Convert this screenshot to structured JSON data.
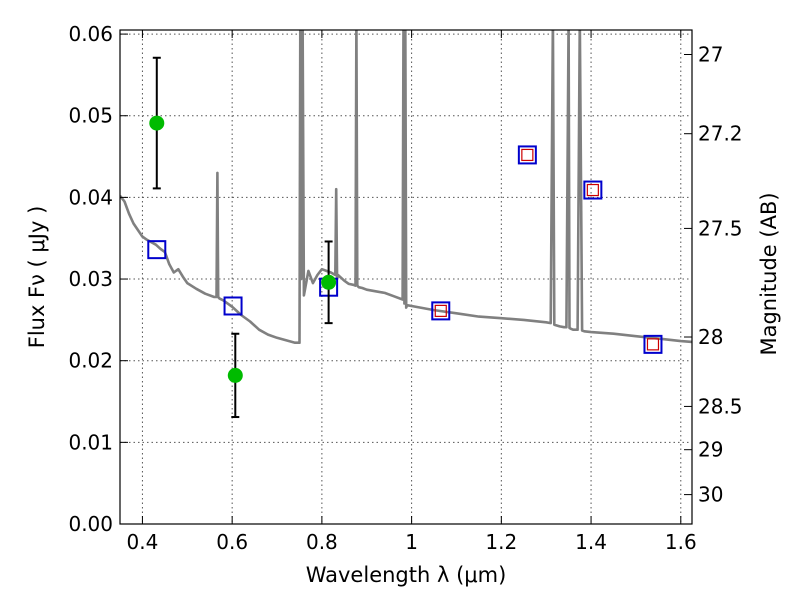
{
  "chart_data": {
    "type": "scatter",
    "xlabel": "Wavelength  λ (μm)",
    "ylabel_left": "Flux  Fν  ( μJy )",
    "ylabel_right": "Magnitude (AB)",
    "xlim": [
      0.35,
      1.625
    ],
    "ylim": [
      0.0,
      0.0605
    ],
    "grid": true,
    "x_ticks": [
      0.4,
      0.6,
      0.8,
      1.0,
      1.2,
      1.4,
      1.6
    ],
    "x_tick_labels": [
      "0.4",
      "0.6",
      "0.8",
      "1",
      "1.2",
      "1.4",
      "1.6"
    ],
    "y_ticks": [
      0.0,
      0.01,
      0.02,
      0.03,
      0.04,
      0.05,
      0.06
    ],
    "y_tick_labels": [
      "0.00",
      "0.01",
      "0.02",
      "0.03",
      "0.04",
      "0.05",
      "0.06"
    ],
    "right_ticks": [
      {
        "label": "27",
        "flux": 0.0575
      },
      {
        "label": "27.2",
        "flux": 0.0478
      },
      {
        "label": "27.5",
        "flux": 0.0362
      },
      {
        "label": "28",
        "flux": 0.0229
      },
      {
        "label": "28.5",
        "flux": 0.0144
      },
      {
        "label": "29",
        "flux": 0.0091
      },
      {
        "label": "30",
        "flux": 0.0036
      }
    ],
    "series": [
      {
        "kind": "line",
        "color": "#808080",
        "x": [
          0.35,
          0.36,
          0.37,
          0.38,
          0.39,
          0.4,
          0.41,
          0.42,
          0.43,
          0.44,
          0.45,
          0.46,
          0.47,
          0.48,
          0.49,
          0.5,
          0.52,
          0.54,
          0.56,
          0.565,
          0.567,
          0.569,
          0.572,
          0.58,
          0.6,
          0.62,
          0.64,
          0.66,
          0.68,
          0.7,
          0.72,
          0.74,
          0.75,
          0.752,
          0.754,
          0.757,
          0.76,
          0.77,
          0.78,
          0.79,
          0.8,
          0.81,
          0.82,
          0.83,
          0.832,
          0.834,
          0.836,
          0.84,
          0.85,
          0.86,
          0.87,
          0.875,
          0.877,
          0.879,
          0.882,
          0.89,
          0.9,
          0.92,
          0.94,
          0.96,
          0.98,
          0.982,
          0.984,
          0.986,
          0.988,
          0.99,
          1.0,
          1.05,
          1.1,
          1.15,
          1.2,
          1.25,
          1.3,
          1.31,
          1.315,
          1.318,
          1.33,
          1.34,
          1.345,
          1.35,
          1.352,
          1.355,
          1.36,
          1.37,
          1.375,
          1.38,
          1.385,
          1.4,
          1.45,
          1.5,
          1.55,
          1.6,
          1.625
        ],
        "y": [
          0.0402,
          0.0395,
          0.038,
          0.0368,
          0.036,
          0.0352,
          0.0348,
          0.0345,
          0.0342,
          0.0337,
          0.0333,
          0.0318,
          0.0308,
          0.0312,
          0.0303,
          0.0295,
          0.0288,
          0.0282,
          0.0278,
          0.0278,
          0.043,
          0.0278,
          0.0276,
          0.0274,
          0.0266,
          0.0256,
          0.0248,
          0.0238,
          0.0232,
          0.0228,
          0.0225,
          0.0222,
          0.0222,
          0.062,
          0.03,
          0.062,
          0.028,
          0.031,
          0.0295,
          0.0305,
          0.0312,
          0.031,
          0.0308,
          0.0305,
          0.041,
          0.03,
          0.0305,
          0.0303,
          0.0298,
          0.0294,
          0.0293,
          0.0292,
          0.062,
          0.0292,
          0.029,
          0.0289,
          0.0287,
          0.0285,
          0.0283,
          0.0279,
          0.0275,
          0.062,
          0.027,
          0.062,
          0.0265,
          0.0268,
          0.0267,
          0.0262,
          0.0258,
          0.0254,
          0.0252,
          0.025,
          0.0247,
          0.0246,
          0.062,
          0.0244,
          0.0242,
          0.0241,
          0.0241,
          0.062,
          0.024,
          0.0239,
          0.0238,
          0.0238,
          0.062,
          0.0237,
          0.0236,
          0.0235,
          0.0233,
          0.023,
          0.0227,
          0.0224,
          0.0223
        ]
      },
      {
        "kind": "squares",
        "color": "#0000cc",
        "x": [
          0.432,
          0.602,
          0.815,
          1.065,
          1.258,
          1.404,
          1.538
        ],
        "y": [
          0.0336,
          0.0267,
          0.029,
          0.0261,
          0.0452,
          0.0409,
          0.022
        ]
      },
      {
        "kind": "squares_small",
        "color": "#cc0000",
        "x": [
          1.065,
          1.258,
          1.404,
          1.538
        ],
        "y": [
          0.0261,
          0.0452,
          0.0409,
          0.022
        ]
      },
      {
        "kind": "points_with_errors",
        "color": "#00bb00",
        "x": [
          0.432,
          0.607,
          0.815
        ],
        "y": [
          0.0491,
          0.0182,
          0.0296
        ],
        "yerr": [
          0.008,
          0.0051,
          0.005
        ]
      }
    ]
  }
}
